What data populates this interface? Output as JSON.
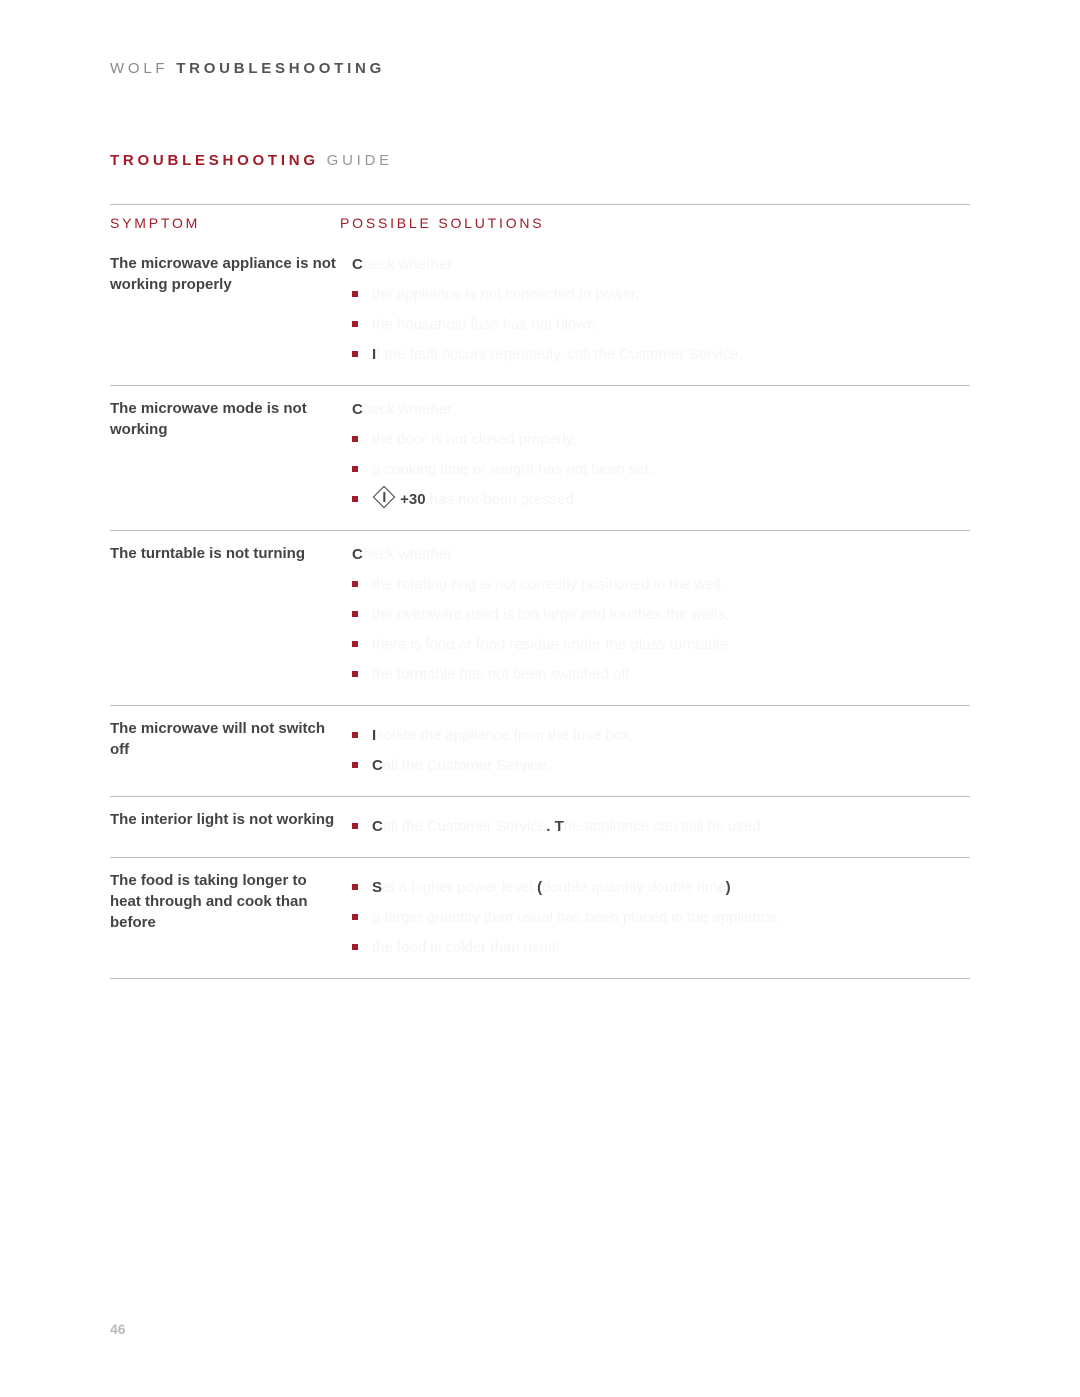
{
  "colors": {
    "accent": "#a01c28",
    "text_dark": "#444444",
    "text_light": "#f5f5f5",
    "text_muted": "#999999",
    "rule": "#bbbbbb",
    "background": "#ffffff"
  },
  "typography": {
    "base_fontsize_pt": 11,
    "header_letter_spacing_em": 0.25
  },
  "brand": {
    "prefix": "WOLF ",
    "bold": "TROUBLESHOOTING"
  },
  "section": {
    "red": "TROUBLESHOOTING",
    "gray": " GUIDE"
  },
  "headers": {
    "symptom": "SYMPTOM",
    "solutions": "POSSIBLE SOLUTIONS"
  },
  "rows": [
    {
      "symptom": "The microwave appliance is not working properly",
      "lead_bold": "C",
      "lead_rest": "heck whether",
      "bullets": [
        {
          "bold": "",
          "text": "the appliance is not connected to power,"
        },
        {
          "bold": "",
          "text": "the household fuse has not blown."
        },
        {
          "bold": "I",
          "text": "f the fault occurs repeatedly, call the Customer Service."
        }
      ]
    },
    {
      "symptom": "The microwave mode is not working",
      "lead_bold": "C",
      "lead_rest": "heck whether",
      "bullets": [
        {
          "bold": "",
          "text": "the door is not closed properly,"
        },
        {
          "bold": "",
          "text": "a cooking time or weight has not been set,"
        },
        {
          "bold": "",
          "special": "icon",
          "text": "has not been pressed."
        }
      ]
    },
    {
      "symptom": "The turntable is not turning",
      "lead_bold": "C",
      "lead_rest": "heck whether",
      "bullets": [
        {
          "bold": "",
          "text": "the rotating ring is not correctly positioned in the well,"
        },
        {
          "bold": "",
          "text": "the ovenware used is too large and touches the walls,"
        },
        {
          "bold": "",
          "text": "there is food or food residue under the glass turntable."
        },
        {
          "bold": "",
          "text": "the turntable has not been switched off."
        }
      ]
    },
    {
      "symptom": "The microwave will not switch off",
      "lead_bold": "",
      "lead_rest": "",
      "bullets": [
        {
          "bold": "I",
          "text": "solate the appliance from the fuse box."
        },
        {
          "bold": "C",
          "text": "all the Customer Service."
        }
      ]
    },
    {
      "symptom": "The interior light is not working",
      "lead_bold": "",
      "lead_rest": "",
      "bullets": [
        {
          "bold": "C",
          "mid_bold": ". T",
          "text_a": "all the Customer Service",
          "text_b": "he appliance can still be used."
        }
      ]
    },
    {
      "symptom": "The food is taking longer to heat through and cook than before",
      "lead_bold": "",
      "lead_rest": "",
      "bullets": [
        {
          "bold": "S",
          "paren_open": "(",
          "paren_close": ")",
          "text_a": "et a higher power level ",
          "text_b": "double quantity double time"
        },
        {
          "bold": "",
          "text": "a larger quantity than usual has been placed in the appliance,"
        },
        {
          "bold": "",
          "text": "the food is colder than usual."
        }
      ]
    }
  ],
  "plus30": "+30",
  "page_number": "46"
}
